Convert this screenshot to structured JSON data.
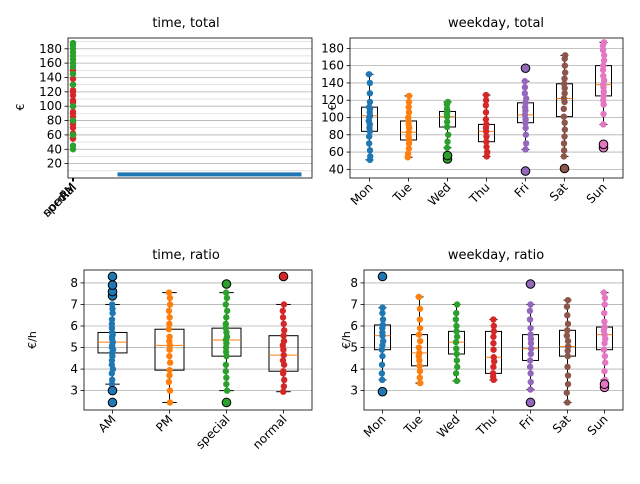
{
  "figure": {
    "background": "#ffffff"
  },
  "chart_data": [
    {
      "type": "box+strip",
      "title": "time, total",
      "ylabel": "€",
      "categories": [
        "AM",
        "PM",
        "special",
        "normal"
      ],
      "ylim": [
        0,
        195
      ],
      "yticks": [
        20,
        40,
        60,
        80,
        100,
        120,
        140,
        160,
        180
      ],
      "grid": true,
      "ytick_step_minor": 10,
      "series": [
        {
          "category": "normal",
          "color": "#d62728",
          "values": [
            55,
            62,
            70,
            78,
            85,
            92,
            100,
            108,
            115,
            122,
            130,
            138,
            145,
            150,
            55,
            60,
            75,
            90,
            105,
            120
          ]
        },
        {
          "category": "special",
          "color": "#2ca02c",
          "values": [
            40,
            45,
            60,
            80,
            100,
            130,
            145,
            155,
            160,
            165,
            170,
            175,
            180,
            185,
            188
          ]
        }
      ],
      "box_annotation": {
        "category_span": [
          "PM",
          "special"
        ],
        "y": 5,
        "color": "#1f77b4"
      },
      "note": "x tick labels AM, PM, special, normal overlap at the first position"
    },
    {
      "type": "box+strip",
      "title": "weekday, total",
      "ylabel": "€",
      "categories": [
        "Mon",
        "Tue",
        "Wed",
        "Thu",
        "Fri",
        "Sat",
        "Sun"
      ],
      "ylim": [
        30,
        192
      ],
      "yticks": [
        40,
        60,
        80,
        100,
        120,
        140,
        160,
        180
      ],
      "grid": true,
      "boxes": [
        {
          "q1": 84,
          "median": 102,
          "q3": 112,
          "whislo": 51,
          "whishi": 150,
          "fliers": [],
          "color": "#1f77b4",
          "points": [
            51,
            55,
            62,
            70,
            78,
            84,
            88,
            92,
            96,
            100,
            102,
            106,
            110,
            112,
            118,
            128,
            140,
            150
          ]
        },
        {
          "q1": 74,
          "median": 83,
          "q3": 96,
          "whislo": 54,
          "whishi": 125,
          "fliers": [],
          "color": "#ff7f0e",
          "points": [
            54,
            58,
            64,
            70,
            74,
            78,
            83,
            88,
            92,
            96,
            100,
            106,
            112,
            118,
            125
          ]
        },
        {
          "q1": 89,
          "median": 101,
          "q3": 107,
          "whislo": 65,
          "whishi": 118,
          "fliers": [
            52,
            56
          ],
          "color": "#2ca02c",
          "points": [
            65,
            72,
            80,
            89,
            95,
            101,
            104,
            107,
            110,
            115,
            118
          ]
        },
        {
          "q1": 72,
          "median": 84,
          "q3": 92,
          "whislo": 55,
          "whishi": 126,
          "fliers": [],
          "color": "#d62728",
          "points": [
            55,
            60,
            66,
            72,
            78,
            84,
            88,
            92,
            98,
            106,
            114,
            120,
            126
          ]
        },
        {
          "q1": 94,
          "median": 103,
          "q3": 117,
          "whislo": 63,
          "whishi": 142,
          "fliers": [
            38,
            157
          ],
          "color": "#9467bd",
          "points": [
            63,
            70,
            80,
            88,
            94,
            98,
            103,
            108,
            112,
            117,
            122,
            128,
            135,
            142
          ]
        },
        {
          "q1": 101,
          "median": 122,
          "q3": 139,
          "whislo": 55,
          "whishi": 172,
          "fliers": [
            41
          ],
          "color": "#8c564b",
          "points": [
            55,
            62,
            70,
            78,
            86,
            94,
            101,
            110,
            118,
            122,
            128,
            134,
            139,
            145,
            152,
            160,
            168,
            172
          ]
        },
        {
          "q1": 125,
          "median": 138,
          "q3": 160,
          "whislo": 92,
          "whishi": 187,
          "fliers": [
            65,
            69
          ],
          "color": "#e377c2",
          "points": [
            92,
            104,
            115,
            120,
            125,
            130,
            135,
            138,
            143,
            148,
            155,
            160,
            166,
            172,
            178,
            183,
            187
          ]
        }
      ]
    },
    {
      "type": "box+strip",
      "title": "time, ratio",
      "ylabel": "€/h",
      "categories": [
        "AM",
        "PM",
        "special",
        "normal"
      ],
      "ylim": [
        2.1,
        8.6
      ],
      "yticks": [
        3,
        4,
        5,
        6,
        7,
        8
      ],
      "grid": true,
      "boxes": [
        {
          "q1": 4.75,
          "median": 5.25,
          "q3": 5.7,
          "whislo": 3.3,
          "whishi": 7.0,
          "fliers": [
            2.45,
            3.0,
            7.4,
            7.6,
            7.9,
            8.3
          ],
          "color": "#1f77b4",
          "points": [
            3.3,
            3.5,
            3.8,
            4.0,
            4.2,
            4.4,
            4.6,
            4.75,
            4.9,
            5.0,
            5.1,
            5.25,
            5.4,
            5.5,
            5.6,
            5.7,
            5.9,
            6.1,
            6.3,
            6.6,
            6.8,
            7.0
          ]
        },
        {
          "q1": 3.95,
          "median": 5.1,
          "q3": 5.85,
          "whislo": 2.45,
          "whishi": 7.55,
          "fliers": [],
          "color": "#ff7f0e",
          "points": [
            2.45,
            3.0,
            3.4,
            3.7,
            3.95,
            4.3,
            4.6,
            4.9,
            5.1,
            5.3,
            5.5,
            5.85,
            6.1,
            6.4,
            6.7,
            7.0,
            7.3,
            7.55
          ]
        },
        {
          "q1": 4.6,
          "median": 5.35,
          "q3": 5.9,
          "whislo": 3.0,
          "whishi": 7.55,
          "fliers": [
            2.45,
            7.95
          ],
          "color": "#2ca02c",
          "points": [
            3.0,
            3.3,
            3.6,
            3.9,
            4.2,
            4.6,
            4.8,
            5.0,
            5.2,
            5.35,
            5.5,
            5.7,
            5.9,
            6.1,
            6.4,
            6.7,
            7.0,
            7.3,
            7.55
          ]
        },
        {
          "q1": 3.9,
          "median": 4.65,
          "q3": 5.55,
          "whislo": 2.95,
          "whishi": 7.0,
          "fliers": [
            8.3
          ],
          "color": "#d62728",
          "points": [
            2.95,
            3.2,
            3.5,
            3.8,
            3.9,
            4.2,
            4.4,
            4.65,
            4.9,
            5.1,
            5.3,
            5.55,
            5.8,
            6.1,
            6.4,
            6.7,
            7.0
          ]
        }
      ]
    },
    {
      "type": "box+strip",
      "title": "weekday, ratio",
      "ylabel": "€/h",
      "categories": [
        "Mon",
        "Tue",
        "Wed",
        "Thu",
        "Fri",
        "Sat",
        "Sun"
      ],
      "ylim": [
        2.1,
        8.6
      ],
      "yticks": [
        3,
        4,
        5,
        6,
        7,
        8
      ],
      "grid": true,
      "boxes": [
        {
          "q1": 4.9,
          "median": 5.55,
          "q3": 6.05,
          "whislo": 3.5,
          "whishi": 6.85,
          "fliers": [
            2.95,
            8.3
          ],
          "color": "#1f77b4",
          "points": [
            3.5,
            3.8,
            4.2,
            4.6,
            4.9,
            5.1,
            5.3,
            5.55,
            5.7,
            5.9,
            6.05,
            6.3,
            6.6,
            6.85
          ]
        },
        {
          "q1": 4.15,
          "median": 4.75,
          "q3": 5.6,
          "whislo": 3.35,
          "whishi": 7.35,
          "fliers": [],
          "color": "#ff7f0e",
          "points": [
            3.35,
            3.6,
            3.9,
            4.15,
            4.4,
            4.6,
            4.75,
            5.0,
            5.3,
            5.6,
            5.9,
            6.3,
            6.8,
            7.35
          ]
        },
        {
          "q1": 4.7,
          "median": 5.25,
          "q3": 5.75,
          "whislo": 3.45,
          "whishi": 7.0,
          "fliers": [],
          "color": "#2ca02c",
          "points": [
            3.45,
            3.8,
            4.1,
            4.4,
            4.7,
            4.95,
            5.25,
            5.5,
            5.75,
            6.0,
            6.3,
            6.6,
            7.0
          ]
        },
        {
          "q1": 3.8,
          "median": 4.55,
          "q3": 5.75,
          "whislo": 3.5,
          "whishi": 6.3,
          "fliers": [],
          "color": "#d62728",
          "points": [
            3.5,
            3.65,
            3.8,
            4.1,
            4.35,
            4.55,
            4.9,
            5.2,
            5.5,
            5.75,
            6.0,
            6.3
          ]
        },
        {
          "q1": 4.4,
          "median": 4.95,
          "q3": 5.6,
          "whislo": 3.05,
          "whishi": 7.0,
          "fliers": [
            2.45,
            7.95
          ],
          "color": "#9467bd",
          "points": [
            3.05,
            3.4,
            3.8,
            4.1,
            4.4,
            4.7,
            4.95,
            5.2,
            5.4,
            5.6,
            5.9,
            6.3,
            6.7,
            7.0
          ]
        },
        {
          "q1": 4.6,
          "median": 5.05,
          "q3": 5.8,
          "whislo": 2.45,
          "whishi": 7.2,
          "fliers": [],
          "color": "#8c564b",
          "points": [
            2.45,
            2.9,
            3.3,
            3.7,
            4.1,
            4.6,
            4.85,
            5.05,
            5.3,
            5.55,
            5.8,
            6.1,
            6.5,
            6.9,
            7.2
          ]
        },
        {
          "q1": 4.9,
          "median": 5.6,
          "q3": 5.95,
          "whislo": 3.5,
          "whishi": 7.55,
          "fliers": [
            3.15,
            3.3
          ],
          "color": "#e377c2",
          "points": [
            3.5,
            3.9,
            4.3,
            4.6,
            4.9,
            5.2,
            5.4,
            5.6,
            5.8,
            5.95,
            6.2,
            6.6,
            7.0,
            7.3,
            7.55
          ]
        }
      ]
    }
  ]
}
